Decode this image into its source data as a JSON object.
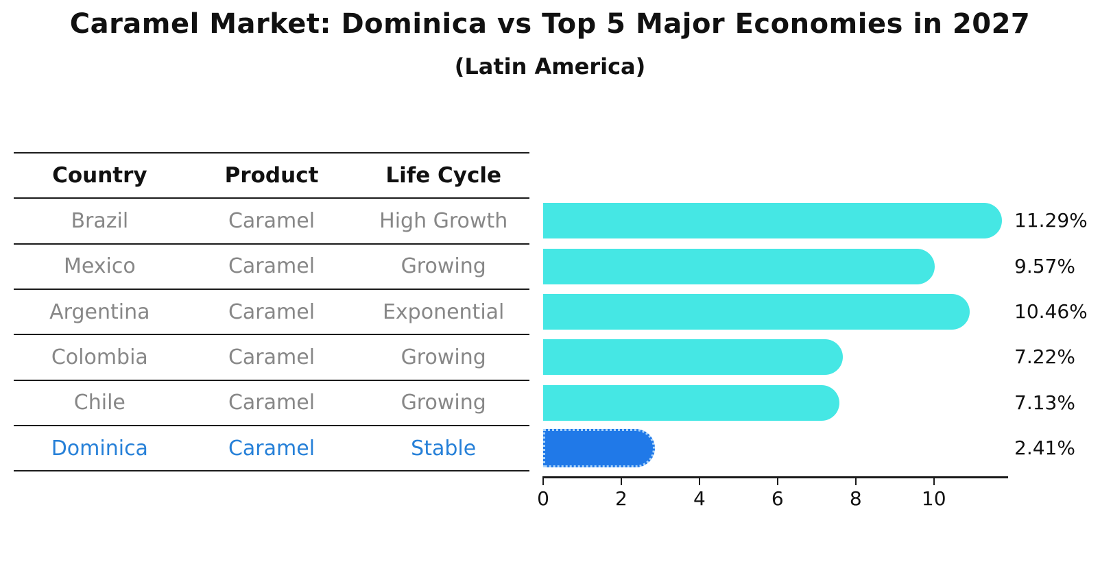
{
  "page": {
    "title": "Caramel Market: Dominica vs Top 5 Major Economies in 2027",
    "subtitle": "(Latin America)"
  },
  "table": {
    "headers": [
      "Country",
      "Product",
      "Life Cycle"
    ],
    "rows": [
      {
        "country": "Brazil",
        "product": "Caramel",
        "life_cycle": "High Growth",
        "highlight": false
      },
      {
        "country": "Mexico",
        "product": "Caramel",
        "life_cycle": "Growing",
        "highlight": false
      },
      {
        "country": "Argentina",
        "product": "Caramel",
        "life_cycle": "Exponential",
        "highlight": false
      },
      {
        "country": "Colombia",
        "product": "Caramel",
        "life_cycle": "Growing",
        "highlight": false
      },
      {
        "country": "Chile",
        "product": "Caramel",
        "life_cycle": "Growing",
        "highlight": false
      },
      {
        "country": "Dominica",
        "product": "Caramel",
        "life_cycle": "Stable",
        "highlight": true
      }
    ]
  },
  "chart_data": {
    "type": "bar",
    "orientation": "horizontal",
    "title": "Caramel Market: Dominica vs Top 5 Major Economies in 2027",
    "subtitle": "(Latin America)",
    "categories": [
      "Brazil",
      "Mexico",
      "Argentina",
      "Colombia",
      "Chile",
      "Dominica"
    ],
    "values": [
      11.29,
      9.57,
      10.46,
      7.22,
      7.13,
      2.41
    ],
    "bar_labels": [
      "11.29%",
      "9.57%",
      "10.46%",
      "7.22%",
      "7.13%",
      "2.41%"
    ],
    "xlabel": "",
    "ylabel": "",
    "xlim": [
      0,
      11.9
    ],
    "xticks": [
      0,
      2,
      4,
      6,
      8,
      10
    ],
    "grid": false,
    "legend": false,
    "bar_color": "#45e7e4",
    "highlight_color": "#2079e8",
    "highlight_index": 5
  },
  "colors": {
    "bar_cyan": "#45e7e4",
    "bar_blue": "#2079e8",
    "bar_blue_dot_edge": "#aad4fb",
    "table_text_gray": "#878787",
    "highlight_text_blue": "#2680d8",
    "heading_black": "#111111",
    "axis_black": "#1a1a1a",
    "background": "#ffffff"
  }
}
